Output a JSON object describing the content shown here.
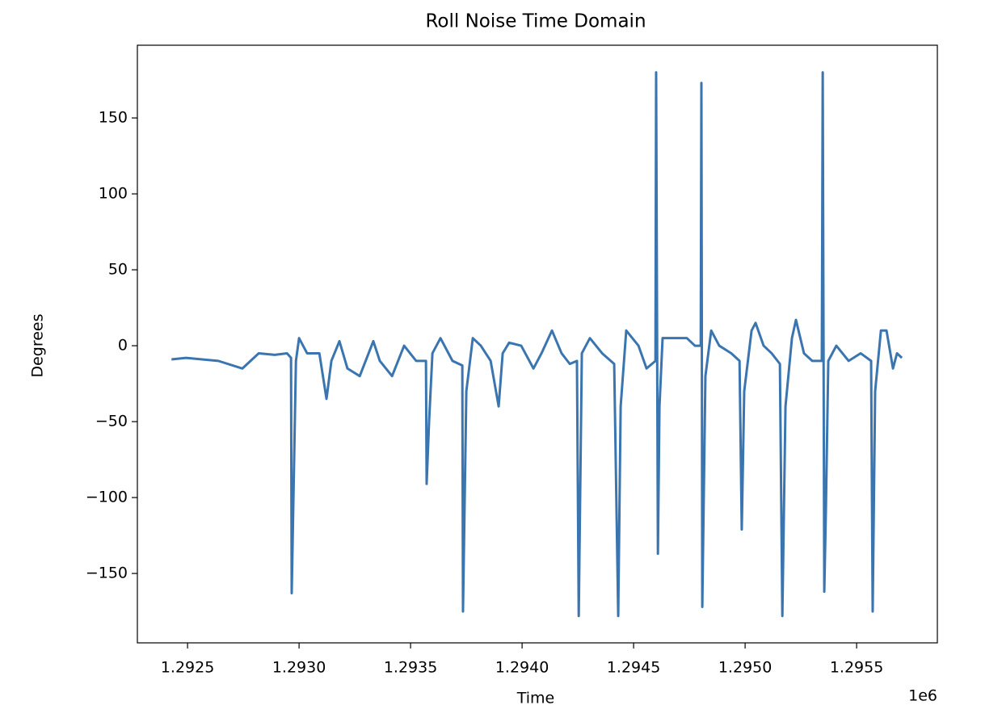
{
  "chart_data": {
    "type": "line",
    "title": "Roll Noise Time Domain",
    "x_label": "Time",
    "y_label": "Degrees",
    "x_offset_label": "1e6",
    "color": "#3b75af",
    "grid": false,
    "xlim": [
      1.292275,
      1.295862
    ],
    "ylim": [
      -195.7,
      197.9
    ],
    "xticks": [
      1.2925,
      {
        "value": 1.293,
        "label": "1.2930"
      },
      1.2935,
      {
        "value": 1.294,
        "label": "1.2940"
      },
      1.2945,
      {
        "value": 1.295,
        "label": "1.2950"
      },
      1.2955
    ],
    "yticks": [
      {
        "value": -150,
        "label": "−150"
      },
      {
        "value": -100,
        "label": "−100"
      },
      {
        "value": -50,
        "label": "−50"
      },
      0,
      50,
      100,
      150
    ],
    "x": [
      1.292428,
      1.292493,
      1.292565,
      1.292638,
      1.292746,
      1.292819,
      1.292891,
      1.292946,
      1.292964,
      1.292967,
      1.292986,
      1.293,
      1.293036,
      1.293091,
      1.293123,
      1.293145,
      1.293181,
      1.293217,
      1.293272,
      1.293333,
      1.293362,
      1.293417,
      1.293471,
      1.293525,
      1.293569,
      1.293572,
      1.293583,
      1.293598,
      1.293634,
      1.293688,
      1.293732,
      1.293735,
      1.29375,
      1.293779,
      1.293815,
      1.293859,
      1.293895,
      1.293913,
      1.293942,
      1.293996,
      1.294051,
      1.294087,
      1.294134,
      1.294177,
      1.294214,
      1.294246,
      1.294254,
      1.294268,
      1.294304,
      1.294359,
      1.294413,
      1.294431,
      1.294442,
      1.294467,
      1.294522,
      1.294558,
      1.294598,
      1.294601,
      1.294609,
      1.294616,
      1.29463,
      1.294685,
      1.294739,
      1.294775,
      1.294801,
      1.294804,
      1.294808,
      1.294822,
      1.294848,
      1.294884,
      1.294938,
      1.294975,
      1.294985,
      1.294996,
      1.295029,
      1.295047,
      1.295083,
      1.295119,
      1.295156,
      1.295167,
      1.295181,
      1.29521,
      1.295228,
      1.295264,
      1.295301,
      1.295344,
      1.295348,
      1.295355,
      1.295362,
      1.295373,
      1.295409,
      1.295464,
      1.295518,
      1.295565,
      1.295572,
      1.295583,
      1.295609,
      1.295634,
      1.295663,
      1.295681,
      1.295703
    ],
    "values": [
      -9,
      -8,
      -9,
      -10,
      -15,
      -5,
      -6,
      -5,
      -8,
      -163,
      -10,
      5,
      -5,
      -5,
      -35,
      -10,
      3,
      -15,
      -20,
      3,
      -10,
      -20,
      0,
      -10,
      -10,
      -91,
      -50,
      -5,
      5,
      -10,
      -13,
      -175,
      -30,
      5,
      0,
      -10,
      -40,
      -5,
      2,
      0,
      -15,
      -5,
      10,
      -5,
      -12,
      -10,
      -178,
      -5,
      5,
      -5,
      -12,
      -178,
      -40,
      10,
      0,
      -15,
      -10,
      180,
      -137,
      -40,
      5,
      5,
      5,
      0,
      0,
      173,
      -172,
      -20,
      10,
      0,
      -5,
      -10,
      -121,
      -30,
      10,
      15,
      0,
      -5,
      -12,
      -178,
      -40,
      5,
      17,
      -5,
      -10,
      -10,
      180,
      -162,
      -110,
      -10,
      0,
      -10,
      -5,
      -10,
      -175,
      -30,
      10,
      10,
      -15,
      -5,
      -8
    ]
  }
}
